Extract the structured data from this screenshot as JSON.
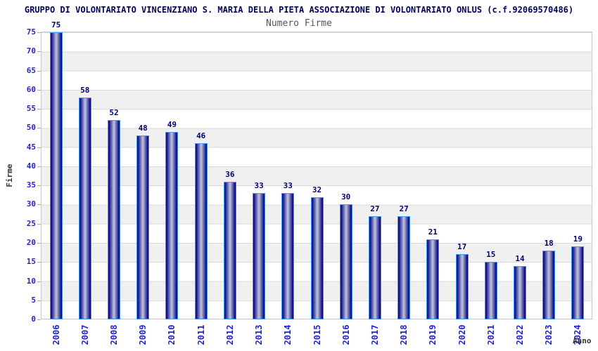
{
  "header": {
    "title": "GRUPPO DI VOLONTARIATO VINCENZIANO S. MARIA DELLA PIETA ASSOCIAZIONE DI VOLONTARIATO ONLUS (c.f.92069570486)"
  },
  "chart_data": {
    "type": "bar",
    "title": "Numero Firme",
    "xlabel": "Anno",
    "ylabel": "Firme",
    "categories": [
      "2006",
      "2007",
      "2008",
      "2009",
      "2010",
      "2011",
      "2012",
      "2013",
      "2014",
      "2015",
      "2016",
      "2017",
      "2018",
      "2019",
      "2020",
      "2021",
      "2022",
      "2023",
      "2024"
    ],
    "values": [
      75,
      58,
      52,
      48,
      49,
      46,
      36,
      33,
      33,
      32,
      30,
      27,
      27,
      21,
      17,
      15,
      14,
      18,
      19
    ],
    "ylim": [
      0,
      75
    ],
    "ytick_step": 5,
    "grid": "horizontal-bands-alternating",
    "legend": "none",
    "bar_labels": "above-bar"
  },
  "colors": {
    "title": "#00005f",
    "subtitle": "#555555",
    "axis_tick_text": "#2424cc",
    "value_label": "#00006e",
    "axis_name_text": "#333333",
    "bar_outline": "#3e97f0",
    "bar_gradient_edge": "#06067a",
    "bar_gradient_inner": "#1c1c90",
    "bar_gradient_center": "#c2c6de",
    "band_gray": "#f0f0f0",
    "gridline": "#d9d9d9",
    "plot_border": "#c8c8c8",
    "background": "#ffffff"
  }
}
